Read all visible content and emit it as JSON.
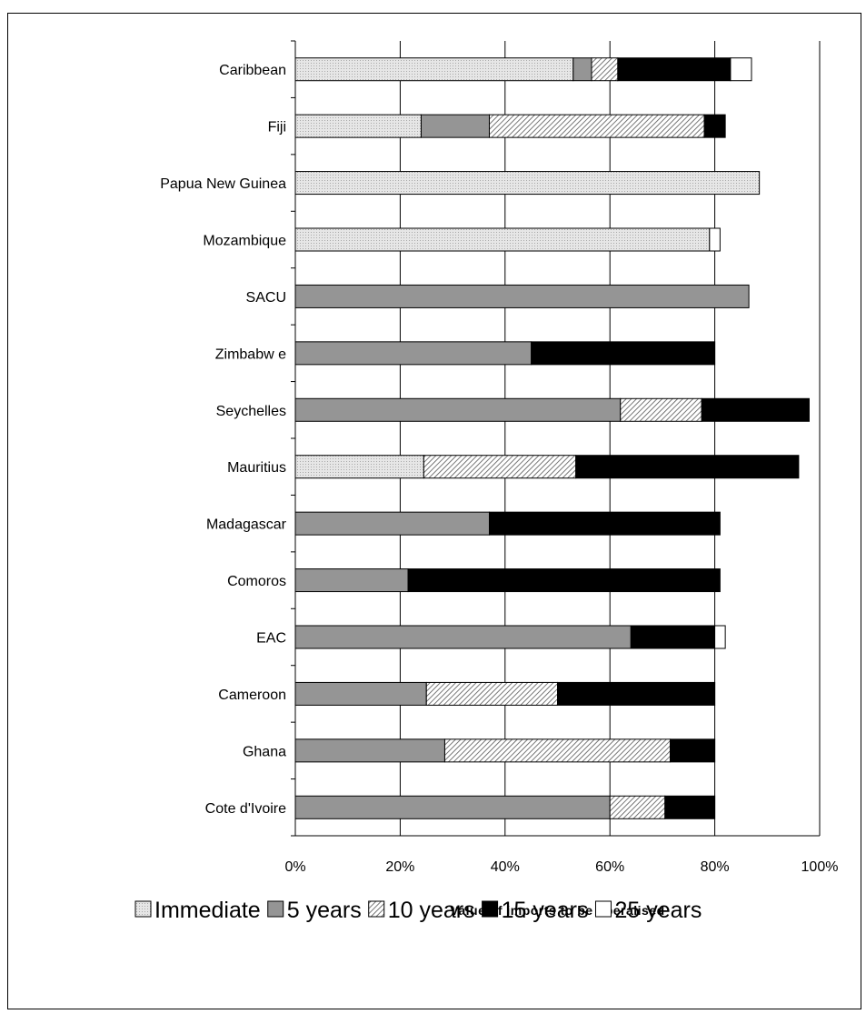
{
  "chart_data": {
    "type": "bar",
    "orientation": "horizontal",
    "stacked": true,
    "categories": [
      "Caribbean",
      "Fiji",
      "Papua New  Guinea",
      "Mozambique",
      "SACU",
      "Zimbabw e",
      "Seychelles",
      "Mauritius",
      "Madagascar",
      "Comoros",
      "EAC",
      "Cameroon",
      "Ghana",
      "Cote d'Ivoire"
    ],
    "series": [
      {
        "name": "Immediate",
        "pattern": "dotted-light",
        "values": [
          53,
          24,
          88.5,
          79,
          0,
          0,
          0,
          24.5,
          0,
          0,
          0,
          0,
          0,
          0
        ]
      },
      {
        "name": "5 years",
        "pattern": "solid-gray",
        "values": [
          3.5,
          13,
          0,
          0,
          86.5,
          45,
          62,
          0,
          37,
          21.5,
          64,
          25,
          28.5,
          60
        ]
      },
      {
        "name": "10 years",
        "pattern": "diagonal-hatch",
        "values": [
          5,
          41,
          0,
          0,
          0,
          0,
          15.5,
          29,
          0,
          0,
          0,
          25,
          43,
          10.5
        ]
      },
      {
        "name": "15 years",
        "pattern": "solid-black",
        "values": [
          21.5,
          4,
          0,
          0,
          0,
          35,
          20.5,
          42.5,
          44,
          59.5,
          16,
          30,
          8.5,
          9.5
        ]
      },
      {
        "name": "25 years",
        "pattern": "white",
        "values": [
          4,
          0,
          0,
          2,
          0,
          0,
          0,
          0,
          0,
          0,
          2,
          0,
          0,
          0
        ]
      }
    ],
    "xlabel": "Value of imports to be liberalised",
    "xlim": [
      0,
      100
    ],
    "xticks": [
      "0%",
      "20%",
      "40%",
      "60%",
      "80%",
      "100%"
    ],
    "grid": "vertical",
    "legend_position": "bottom"
  }
}
